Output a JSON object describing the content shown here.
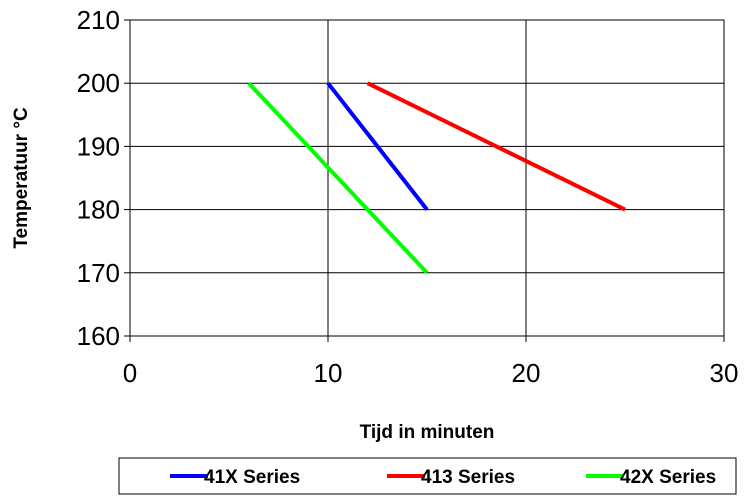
{
  "chart_data": {
    "type": "line",
    "xlabel": "Tijd in minuten",
    "ylabel": "Temperatuur °C",
    "xlim": [
      0,
      30
    ],
    "ylim": [
      160,
      210
    ],
    "x_ticks": [
      0,
      10,
      20,
      30
    ],
    "y_ticks": [
      160,
      170,
      180,
      190,
      200,
      210
    ],
    "grid": true,
    "legend_position": "bottom",
    "series": [
      {
        "name": "41X Series",
        "color": "#0000ff",
        "points": [
          [
            10,
            200
          ],
          [
            15,
            180
          ]
        ]
      },
      {
        "name": "413 Series",
        "color": "#ff0000",
        "points": [
          [
            12,
            200
          ],
          [
            25,
            180
          ]
        ]
      },
      {
        "name": "42X Series",
        "color": "#00ff00",
        "points": [
          [
            6,
            200
          ],
          [
            15,
            170
          ]
        ]
      }
    ]
  }
}
